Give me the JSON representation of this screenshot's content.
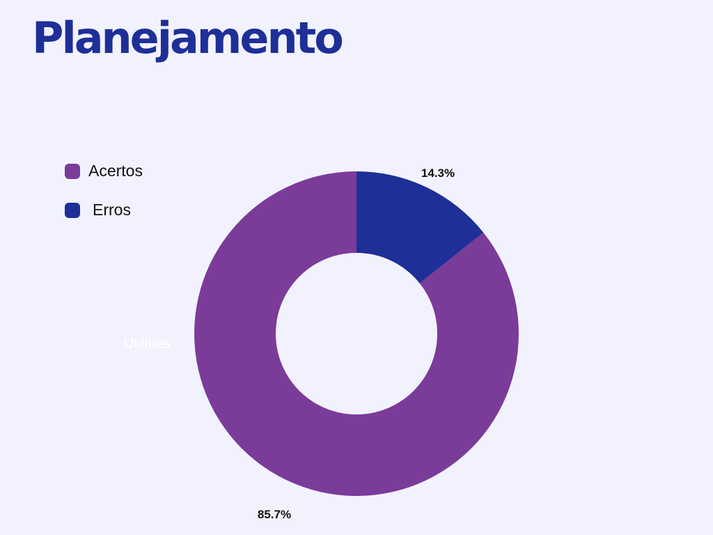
{
  "page": {
    "title": "Planejamento"
  },
  "chart_data": {
    "type": "pie",
    "donut": true,
    "categories": [
      "Acertos",
      "Erros"
    ],
    "values": [
      85.7,
      14.3
    ],
    "colors": [
      "#7b3b99",
      "#1e2f97"
    ],
    "data_labels": [
      "85.7%",
      "14.3%"
    ],
    "annotation": "Utilities",
    "legend": {
      "position": "top-left",
      "entries": [
        "Acertos",
        "Erros"
      ]
    },
    "title": "",
    "xlabel": "",
    "ylabel": ""
  }
}
